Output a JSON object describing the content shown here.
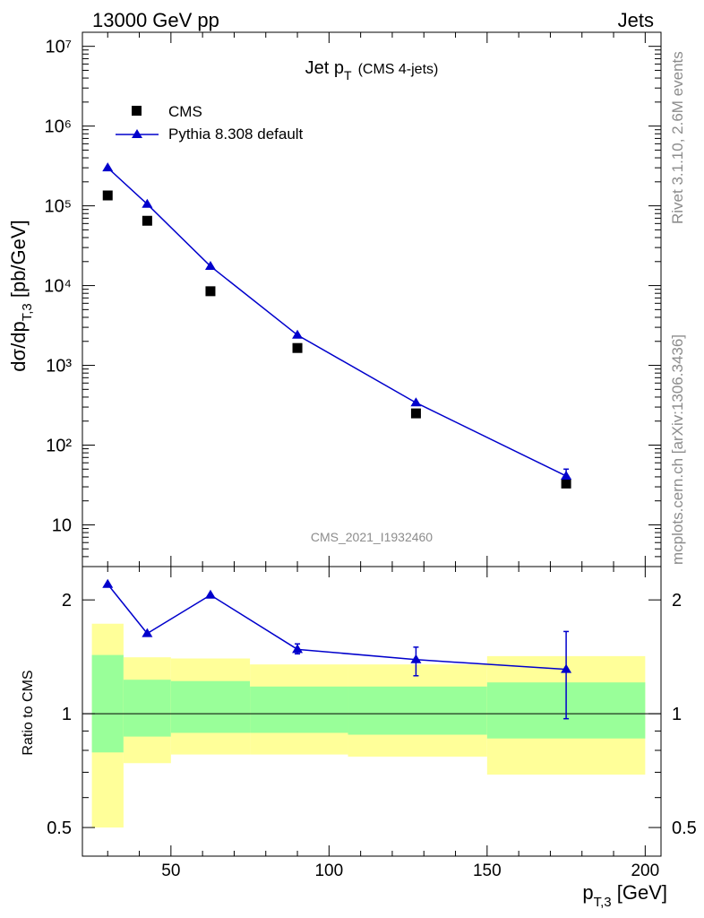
{
  "header": {
    "left": "13000 GeV pp",
    "right": "Jets"
  },
  "side_labels": {
    "rivet": "Rivet 3.1.10,  2.6M events",
    "source": "mcplots.cern.ch [arXiv:1306.3436]"
  },
  "watermark": "CMS_2021_I1932460",
  "colors": {
    "mc": "#0000cc",
    "data": "#000000",
    "band_inner": "#99ff99",
    "band_outer": "#ffff99"
  },
  "chart_data": [
    {
      "type": "scatter",
      "title": {
        "main": "Jet p",
        "sub": "T",
        "extra": "(CMS 4-jets)"
      },
      "ylabel": {
        "pre": "dσ/dp",
        "sub": "T,3",
        "post": " [pb/GeV]"
      },
      "yscale": "log",
      "ylim": [
        3,
        15000000
      ],
      "xlim": [
        22,
        205
      ],
      "y_tick_labels": [
        "10",
        "10²",
        "10³",
        "10⁴",
        "10⁵",
        "10⁶",
        "10⁷"
      ],
      "legend": {
        "position": "top-left",
        "entries": [
          "CMS",
          "Pythia 8.308 default"
        ]
      },
      "series": [
        {
          "name": "CMS",
          "x": [
            30,
            42.5,
            62.5,
            90,
            127.5,
            175
          ],
          "y": [
            135000,
            65000,
            8500,
            1650,
            250,
            33
          ]
        },
        {
          "name": "Pythia 8.308 default",
          "x": [
            30,
            42.5,
            62.5,
            90,
            127.5,
            175
          ],
          "y": [
            300000,
            105000,
            17500,
            2400,
            340,
            41
          ],
          "yerr": [
            0,
            0,
            0,
            0,
            0,
            9
          ]
        }
      ]
    },
    {
      "type": "line",
      "ylabel": "Ratio to CMS",
      "yscale": "log",
      "ylim": [
        0.42,
        2.45
      ],
      "xlim": [
        22,
        205
      ],
      "y_tick_labels": [
        "0.5",
        "1",
        "2"
      ],
      "x_tick_labels": [
        "50",
        "100",
        "150",
        "200"
      ],
      "xlabel": {
        "pre": "p",
        "sub": "T,3",
        "post": " [GeV]"
      },
      "bands": [
        {
          "x0": 25,
          "x1": 35,
          "inner": [
            0.79,
            1.43
          ],
          "outer": [
            0.5,
            1.73
          ]
        },
        {
          "x0": 35,
          "x1": 50,
          "inner": [
            0.87,
            1.23
          ],
          "outer": [
            0.74,
            1.41
          ]
        },
        {
          "x0": 50,
          "x1": 75,
          "inner": [
            0.89,
            1.22
          ],
          "outer": [
            0.78,
            1.4
          ]
        },
        {
          "x0": 75,
          "x1": 106,
          "inner": [
            0.89,
            1.18
          ],
          "outer": [
            0.78,
            1.35
          ]
        },
        {
          "x0": 106,
          "x1": 150,
          "inner": [
            0.88,
            1.18
          ],
          "outer": [
            0.77,
            1.35
          ]
        },
        {
          "x0": 150,
          "x1": 200,
          "inner": [
            0.86,
            1.21
          ],
          "outer": [
            0.69,
            1.42
          ]
        }
      ],
      "series": [
        {
          "name": "Pythia 8.308 default",
          "x": [
            30,
            42.5,
            62.5,
            90,
            127.5,
            175
          ],
          "y": [
            2.2,
            1.63,
            2.06,
            1.48,
            1.39,
            1.31
          ],
          "ylo": [
            2.2,
            1.63,
            2.06,
            1.44,
            1.26,
            0.97
          ],
          "yhi": [
            2.2,
            1.63,
            2.06,
            1.53,
            1.5,
            1.65
          ]
        }
      ]
    }
  ]
}
